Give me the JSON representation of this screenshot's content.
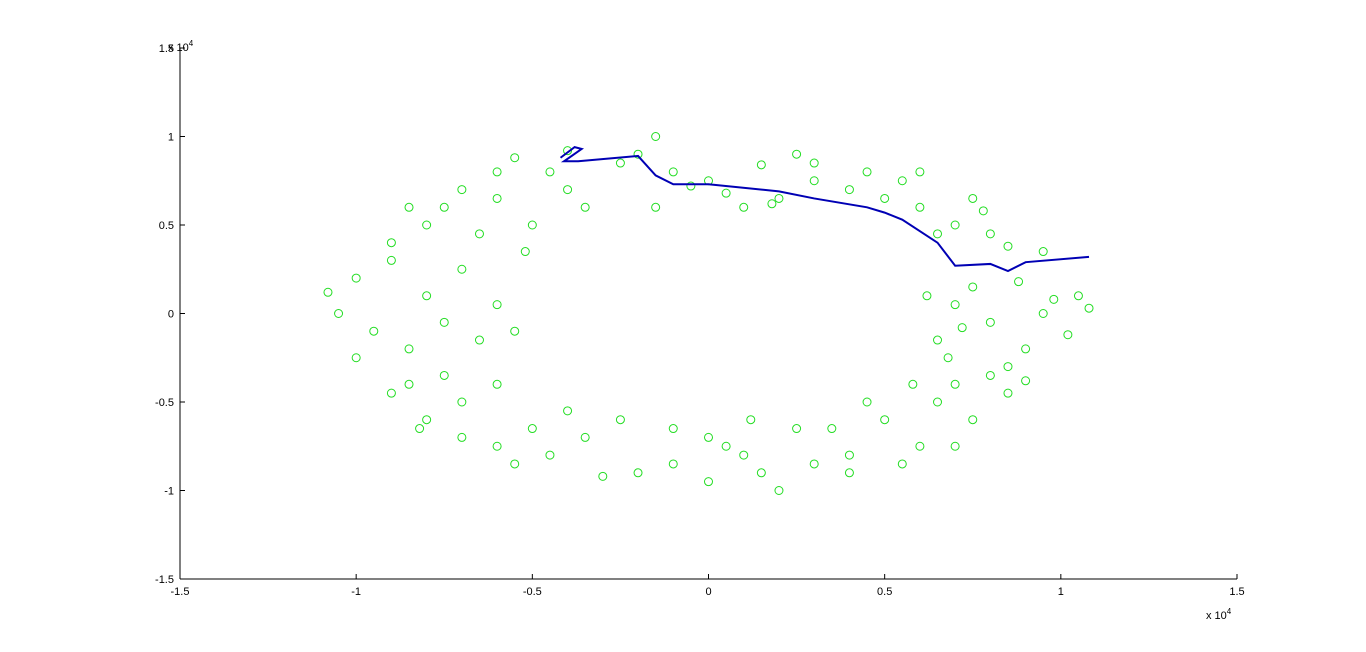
{
  "chart_data": {
    "type": "scatter",
    "xlim": [
      -15000,
      15000
    ],
    "ylim": [
      -15000,
      15000
    ],
    "xticks": [
      {
        "value": -15000,
        "label": "-1.5"
      },
      {
        "value": -10000,
        "label": "-1"
      },
      {
        "value": -5000,
        "label": "-0.5"
      },
      0,
      {
        "value": 5000,
        "label": "0.5"
      },
      {
        "value": 10000,
        "label": "1"
      },
      {
        "value": 15000,
        "label": "1.5"
      }
    ],
    "yticks": [
      {
        "value": -15000,
        "label": "-1.5"
      },
      {
        "value": -10000,
        "label": "-1"
      },
      {
        "value": -5000,
        "label": "-0.5"
      },
      0,
      {
        "value": 5000,
        "label": "0.5"
      },
      {
        "value": 10000,
        "label": "1"
      },
      {
        "value": 15000,
        "label": "1.5"
      }
    ],
    "x_exponent": {
      "base": "x 10",
      "power": "4"
    },
    "y_exponent": {
      "base": "x 10",
      "power": "4"
    },
    "series": [
      {
        "type": "scatter",
        "color": "#22dd22",
        "x": [
          9500,
          10500,
          8000,
          7000,
          6500,
          9000,
          10200,
          7500,
          8800,
          6200,
          10800,
          7200,
          9800,
          6800,
          8500,
          7000,
          8000,
          6000,
          5500,
          7500,
          4500,
          6500,
          8500,
          5000,
          9500,
          6000,
          4000,
          3000,
          7800,
          2000,
          1000,
          0,
          -1000,
          -2000,
          1500,
          3000,
          -1500,
          500,
          2500,
          -500,
          -2500,
          -1500,
          1800,
          -3500,
          -4500,
          -5000,
          -6000,
          -7000,
          -5500,
          -4000,
          -6500,
          -7500,
          -8000,
          -5200,
          -4000,
          -8500,
          -6000,
          -9000,
          -10000,
          -10500,
          -8000,
          -7000,
          -6000,
          -9500,
          -8500,
          -7500,
          -6500,
          -10800,
          -9000,
          -5500,
          -10000,
          -9000,
          -8000,
          -7000,
          -6000,
          -5000,
          -7500,
          -6000,
          -8500,
          -4500,
          -5500,
          -7000,
          -4000,
          -3500,
          -8200,
          -2000,
          -1000,
          0,
          1000,
          2000,
          -2500,
          -1000,
          500,
          1500,
          3000,
          2500,
          -3000,
          0,
          1200,
          4000,
          5000,
          6000,
          6500,
          7000,
          5500,
          4500,
          8000,
          7500,
          3500,
          5800,
          8500,
          4000,
          7000,
          9000
        ],
        "y": [
          0,
          1000,
          -500,
          500,
          -1500,
          -2000,
          -1200,
          1500,
          1800,
          1000,
          300,
          -800,
          800,
          -2500,
          -3000,
          5000,
          4500,
          6000,
          7500,
          6500,
          8000,
          4500,
          3800,
          6500,
          3500,
          8000,
          7000,
          8500,
          5800,
          6500,
          6000,
          7500,
          8000,
          9000,
          8400,
          7500,
          6000,
          6800,
          9000,
          7200,
          8500,
          10000,
          6200,
          6000,
          8000,
          5000,
          6500,
          7000,
          8800,
          7000,
          4500,
          6000,
          5000,
          3500,
          9200,
          6000,
          8000,
          3000,
          2000,
          0,
          1000,
          2500,
          500,
          -1000,
          -2000,
          -500,
          -1500,
          1200,
          4000,
          -1000,
          -2500,
          -4500,
          -6000,
          -5000,
          -7500,
          -6500,
          -3500,
          -4000,
          -4000,
          -8000,
          -8500,
          -7000,
          -5500,
          -7000,
          -6500,
          -9000,
          -8500,
          -9500,
          -8000,
          -10000,
          -6000,
          -6500,
          -7500,
          -9000,
          -8500,
          -6500,
          -9200,
          -7000,
          -6000,
          -8000,
          -6000,
          -7500,
          -5000,
          -4000,
          -8500,
          -5000,
          -3500,
          -6000,
          -6500,
          -4000,
          -4500,
          -9000,
          -7500,
          -3800
        ]
      },
      {
        "type": "line",
        "color": "#0000b4",
        "x": [
          -4200,
          -3800,
          -3600,
          -4100,
          -3700,
          -2000,
          -1500,
          -1000,
          0,
          2000,
          3000,
          4500,
          5000,
          5500,
          6500,
          7000,
          8000,
          8500,
          9000,
          10800
        ],
        "y": [
          8800,
          9400,
          9300,
          8600,
          8600,
          8900,
          7800,
          7300,
          7300,
          6900,
          6500,
          6000,
          5700,
          5300,
          4000,
          2700,
          2800,
          2400,
          2900,
          3200
        ]
      }
    ]
  }
}
